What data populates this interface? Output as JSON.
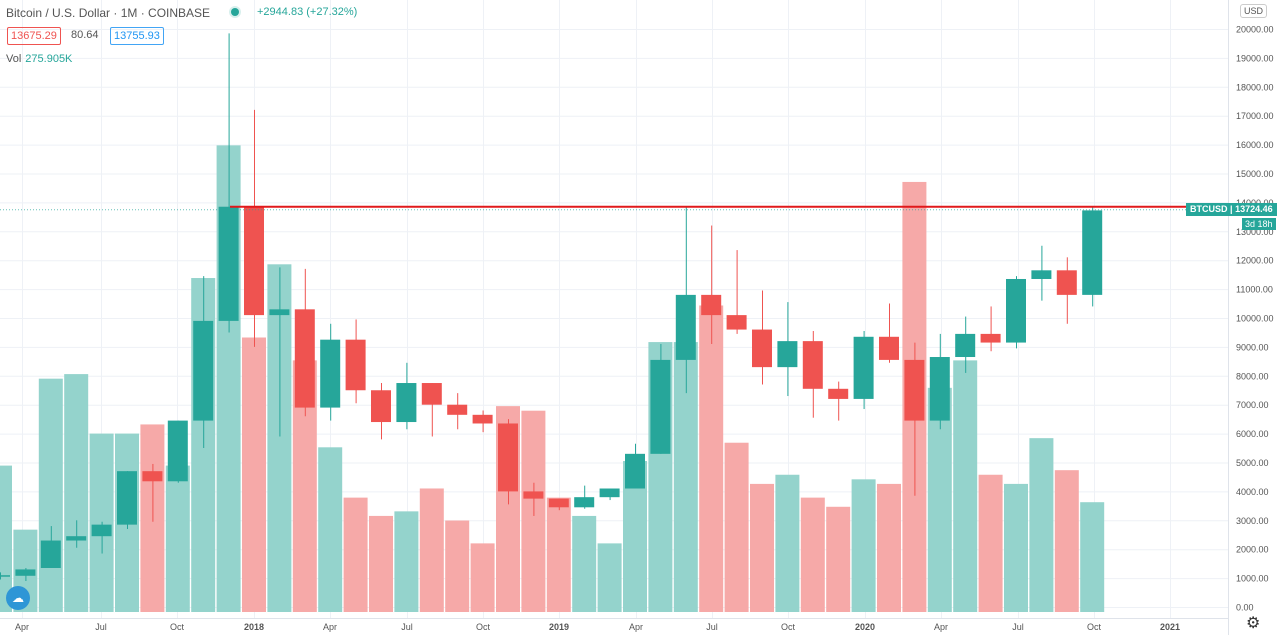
{
  "header": {
    "title": "Bitcoin / U.S. Dollar · 1M · COINBASE",
    "change": "+2944.83 (+27.32%)",
    "bid": "13675.29",
    "spread": "80.64",
    "ask": "13755.93",
    "vol_label": "Vol",
    "vol_value": "275.905K"
  },
  "scale": {
    "currency": "USD",
    "price_tag_symbol": "BTCUSD",
    "price_tag_value": "13724.46",
    "countdown": "3d 18h"
  },
  "colors": {
    "up": "#26a69a",
    "down": "#ef5350",
    "up_volume": "#94d3cc",
    "down_volume": "#f6a9a8",
    "resistance_line": "#e0191b",
    "grid": "#eef1f6"
  },
  "icons": {
    "logo": "tradingview-cloud-icon",
    "settings": "gear-icon"
  },
  "chart_data": {
    "type": "candlestick",
    "title": "Bitcoin / U.S. Dollar · 1M · COINBASE",
    "interval": "1M",
    "y_ticks": [
      "0.00",
      "1000.00",
      "2000.00",
      "3000.00",
      "4000.00",
      "5000.00",
      "6000.00",
      "7000.00",
      "8000.00",
      "9000.00",
      "10000.00",
      "11000.00",
      "12000.00",
      "13000.00",
      "14000.00",
      "15000.00",
      "16000.00",
      "17000.00",
      "18000.00",
      "19000.00",
      "20000.00"
    ],
    "x_ticks": [
      "Apr",
      "Jul",
      "Oct",
      "2018",
      "Apr",
      "Jul",
      "Oct",
      "2019",
      "Apr",
      "Jul",
      "Oct",
      "2020",
      "Apr",
      "Jul",
      "Oct",
      "2021"
    ],
    "ylim": [
      0,
      20000
    ],
    "grid": true,
    "horizontal_line": 13850,
    "candles": [
      {
        "o": 1050,
        "h": 1200,
        "l": 950,
        "c": 1100
      },
      {
        "o": 1080,
        "h": 1350,
        "l": 900,
        "c": 1300
      },
      {
        "o": 1350,
        "h": 2800,
        "l": 1350,
        "c": 2300
      },
      {
        "o": 2300,
        "h": 3000,
        "l": 2050,
        "c": 2450
      },
      {
        "o": 2450,
        "h": 2950,
        "l": 1850,
        "c": 2850
      },
      {
        "o": 2850,
        "h": 4700,
        "l": 2700,
        "c": 4700
      },
      {
        "o": 4700,
        "h": 4950,
        "l": 2950,
        "c": 4350
      },
      {
        "o": 4350,
        "h": 6450,
        "l": 4300,
        "c": 6450
      },
      {
        "o": 6450,
        "h": 11450,
        "l": 5500,
        "c": 9900
      },
      {
        "o": 9900,
        "h": 19850,
        "l": 9500,
        "c": 13850
      },
      {
        "o": 13850,
        "h": 17200,
        "l": 9000,
        "c": 10100
      },
      {
        "o": 10100,
        "h": 11750,
        "l": 5900,
        "c": 10300
      },
      {
        "o": 10300,
        "h": 11700,
        "l": 6600,
        "c": 6900
      },
      {
        "o": 6900,
        "h": 9800,
        "l": 6450,
        "c": 9250
      },
      {
        "o": 9250,
        "h": 9950,
        "l": 7050,
        "c": 7500
      },
      {
        "o": 7500,
        "h": 7750,
        "l": 5800,
        "c": 6400
      },
      {
        "o": 6400,
        "h": 8450,
        "l": 6150,
        "c": 7750
      },
      {
        "o": 7750,
        "h": 7750,
        "l": 5900,
        "c": 7000
      },
      {
        "o": 7000,
        "h": 7400,
        "l": 6150,
        "c": 6650
      },
      {
        "o": 6650,
        "h": 6800,
        "l": 6050,
        "c": 6350
      },
      {
        "o": 6350,
        "h": 6500,
        "l": 3550,
        "c": 4000
      },
      {
        "o": 4000,
        "h": 4300,
        "l": 3150,
        "c": 3750
      },
      {
        "o": 3750,
        "h": 3750,
        "l": 3350,
        "c": 3450
      },
      {
        "o": 3450,
        "h": 4200,
        "l": 3400,
        "c": 3800
      },
      {
        "o": 3800,
        "h": 4100,
        "l": 3700,
        "c": 4100
      },
      {
        "o": 4100,
        "h": 5650,
        "l": 4100,
        "c": 5300
      },
      {
        "o": 5300,
        "h": 9100,
        "l": 5300,
        "c": 8550
      },
      {
        "o": 8550,
        "h": 13850,
        "l": 7400,
        "c": 10800
      },
      {
        "o": 10800,
        "h": 13200,
        "l": 9100,
        "c": 10100
      },
      {
        "o": 10100,
        "h": 12350,
        "l": 9450,
        "c": 9600
      },
      {
        "o": 9600,
        "h": 10950,
        "l": 7700,
        "c": 8300
      },
      {
        "o": 8300,
        "h": 10550,
        "l": 7300,
        "c": 9200
      },
      {
        "o": 9200,
        "h": 9550,
        "l": 6550,
        "c": 7550
      },
      {
        "o": 7550,
        "h": 7800,
        "l": 6450,
        "c": 7200
      },
      {
        "o": 7200,
        "h": 9550,
        "l": 6850,
        "c": 9350
      },
      {
        "o": 9350,
        "h": 10500,
        "l": 8450,
        "c": 8550
      },
      {
        "o": 8550,
        "h": 9150,
        "l": 3850,
        "c": 6450
      },
      {
        "o": 6450,
        "h": 9450,
        "l": 6150,
        "c": 8650
      },
      {
        "o": 8650,
        "h": 10050,
        "l": 8100,
        "c": 9450
      },
      {
        "o": 9450,
        "h": 10400,
        "l": 8850,
        "c": 9150
      },
      {
        "o": 9150,
        "h": 11450,
        "l": 8950,
        "c": 11350
      },
      {
        "o": 11350,
        "h": 12500,
        "l": 10600,
        "c": 11650
      },
      {
        "o": 11650,
        "h": 12100,
        "l": 9800,
        "c": 10800
      },
      {
        "o": 10800,
        "h": 13850,
        "l": 10400,
        "c": 13724
      }
    ],
    "volume": [
      1600,
      900,
      2550,
      2600,
      1950,
      1950,
      2050,
      1600,
      3650,
      5100,
      3000,
      3800,
      2750,
      1800,
      1250,
      1050,
      1100,
      1350,
      1000,
      750,
      2250,
      2200,
      1250,
      1050,
      750,
      1650,
      2950,
      2950,
      3350,
      1850,
      1400,
      1500,
      1250,
      1150,
      1450,
      1400,
      4700,
      2450,
      2750,
      1500,
      1400,
      1900,
      1550,
      1200
    ]
  }
}
